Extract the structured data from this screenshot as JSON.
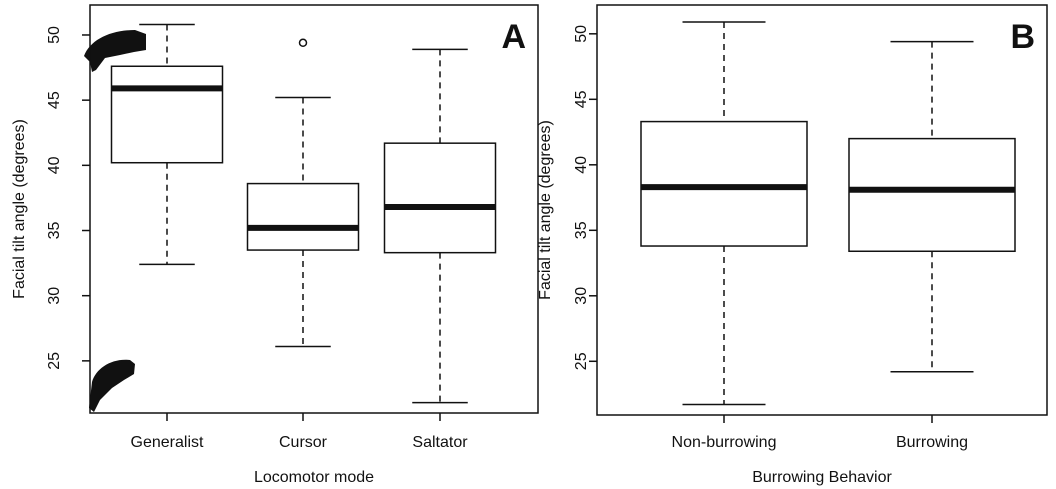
{
  "chart_data": [
    {
      "type": "box",
      "panel_label": "A",
      "y_label": "Facial tilt angle (degrees)",
      "x_label": "Locomotor mode",
      "categories": [
        "Generalist",
        "Cursor",
        "Saltator"
      ],
      "boxes": [
        {
          "whisker_low": 32.4,
          "q1": 40.2,
          "median": 45.9,
          "q3": 47.6,
          "whisker_high": 50.8
        },
        {
          "whisker_low": 26.1,
          "q1": 33.5,
          "median": 35.2,
          "q3": 38.6,
          "whisker_high": 45.2,
          "outliers": [
            49.4
          ]
        },
        {
          "whisker_low": 21.8,
          "q1": 33.3,
          "median": 36.8,
          "q3": 41.7,
          "whisker_high": 48.9
        }
      ],
      "ylim": [
        21.0,
        52.3
      ],
      "yticks": [
        25,
        30,
        35,
        40,
        45,
        50
      ]
    },
    {
      "type": "box",
      "panel_label": "B",
      "y_label": "Facial tilt angle (degrees)",
      "x_label": "Burrowing Behavior",
      "categories": [
        "Non-burrowing",
        "Burrowing"
      ],
      "boxes": [
        {
          "whisker_low": 21.7,
          "q1": 33.8,
          "median": 38.3,
          "q3": 43.3,
          "whisker_high": 50.9
        },
        {
          "whisker_low": 24.2,
          "q1": 33.4,
          "median": 38.1,
          "q3": 42.0,
          "whisker_high": 49.4
        }
      ],
      "ylim": [
        20.9,
        52.2
      ],
      "yticks": [
        25,
        30,
        35,
        40,
        45,
        50
      ]
    }
  ]
}
